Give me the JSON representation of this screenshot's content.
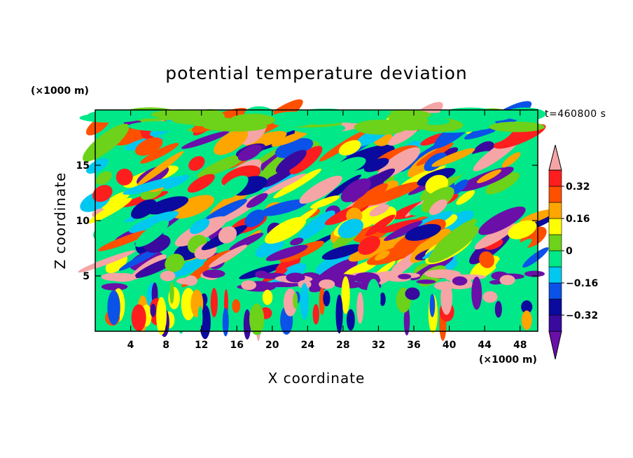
{
  "chart_data": {
    "type": "heatmap",
    "title": "potential temperature deviation",
    "xlabel": "X coordinate",
    "ylabel": "Z coordinate",
    "x_unit": "(×1000 m)",
    "y_unit": "(×1000 m)",
    "time_label": "t=460800 s",
    "xlim": [
      0,
      50
    ],
    "ylim": [
      0,
      20
    ],
    "x_ticks": [
      4,
      8,
      12,
      16,
      20,
      24,
      28,
      32,
      36,
      40,
      44,
      48
    ],
    "y_ticks": [
      5,
      10,
      15
    ],
    "colorbar": {
      "levels": [
        -0.4,
        -0.32,
        -0.24,
        -0.16,
        -0.08,
        0,
        0.08,
        0.16,
        0.24,
        0.32,
        0.4
      ],
      "labeled_ticks": [
        0.32,
        0.16,
        0,
        -0.16,
        -0.32
      ],
      "tick_labels": [
        "0.32",
        "0.16",
        "0",
        "−0.16",
        "−0.32"
      ],
      "colors_low_to_high": [
        "#6a0fa8",
        "#3a0a9e",
        "#0a0a9e",
        "#0a52e8",
        "#00c8ef",
        "#00e887",
        "#6dd21a",
        "#ffff00",
        "#ffa500",
        "#ff5000",
        "#ff1e1e",
        "#f5a5a5"
      ]
    }
  }
}
